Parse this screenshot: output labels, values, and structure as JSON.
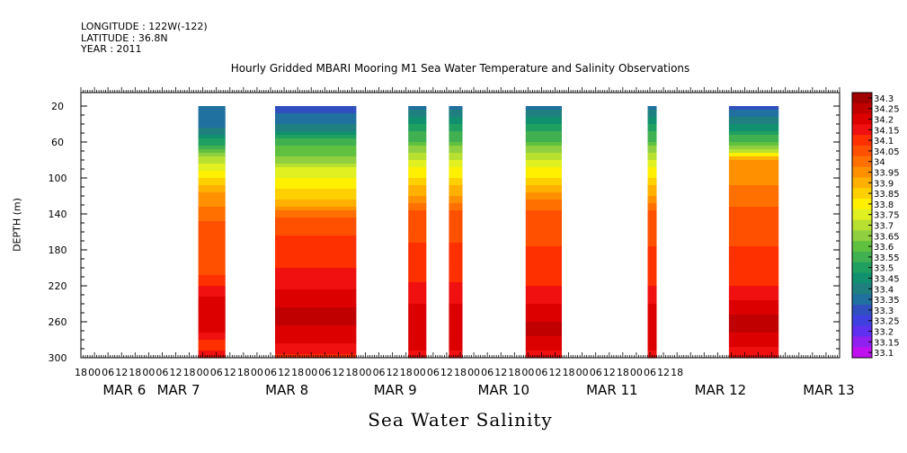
{
  "header": {
    "longitude": "LONGITUDE : 122W(-122)",
    "latitude": "LATITUDE : 36.8N",
    "year": "YEAR : 2011"
  },
  "footer_title": "Sea Water Salinity",
  "chart_data": {
    "type": "heatmap",
    "title": "Hourly Gridded MBARI Mooring M1 Sea Water Temperature and Salinity Observations",
    "ylabel": "DEPTH (m)",
    "xlabel": "",
    "variable": "Sea Water Salinity",
    "x_axis": {
      "hour_tick_labels": [
        "18",
        "00",
        "06",
        "12",
        "18",
        "00",
        "06",
        "12",
        "18",
        "00",
        "06",
        "12",
        "18",
        "00",
        "06",
        "12",
        "18",
        "00",
        "06",
        "12",
        "18",
        "00",
        "06",
        "12",
        "18",
        "00",
        "06",
        "12",
        "18",
        "00",
        "06",
        "12",
        "18",
        "00",
        "06",
        "12",
        "18",
        "00",
        "06",
        "12",
        "18",
        "00",
        "06",
        "12",
        "18"
      ],
      "date_labels": [
        {
          "label": "MAR  6",
          "at_hour": 24
        },
        {
          "label": "MAR  7",
          "at_hour": 48
        },
        {
          "label": "MAR  8",
          "at_hour": 96
        },
        {
          "label": "MAR  9",
          "at_hour": 144
        },
        {
          "label": "MAR 10",
          "at_hour": 192
        },
        {
          "label": "MAR 11",
          "at_hour": 240
        },
        {
          "label": "MAR 12",
          "at_hour": 288
        },
        {
          "label": "MAR 13",
          "at_hour": 336
        }
      ],
      "range_hours": [
        0,
        336
      ],
      "start": "MAR 5 18:00"
    },
    "y_axis": {
      "ticks": [
        20,
        60,
        100,
        140,
        180,
        220,
        260,
        300
      ],
      "ylim": [
        300,
        5
      ],
      "inverted": true
    },
    "colorbar": {
      "levels": [
        "34.3",
        "34.25",
        "34.2",
        "34.15",
        "34.1",
        "34.05",
        "34",
        "33.95",
        "33.9",
        "33.85",
        "33.8",
        "33.75",
        "33.7",
        "33.65",
        "33.6",
        "33.55",
        "33.5",
        "33.45",
        "33.4",
        "33.35",
        "33.3",
        "33.25",
        "33.2",
        "33.15",
        "33.1"
      ],
      "colors": [
        "#a00000",
        "#c00000",
        "#dd0000",
        "#f01010",
        "#ff3000",
        "#ff5000",
        "#ff7000",
        "#ff9000",
        "#ffb000",
        "#ffd000",
        "#fff000",
        "#e0f020",
        "#b8e030",
        "#90d040",
        "#60c040",
        "#40b050",
        "#20a060",
        "#10906f",
        "#208080",
        "#2070a0",
        "#3050c0",
        "#4040e0",
        "#6030f0",
        "#9020f0",
        "#c010f0"
      ]
    },
    "segments": [
      {
        "start_hour": 52,
        "end_hour": 64,
        "profile": [
          [
            20,
            33.35
          ],
          [
            40,
            33.35
          ],
          [
            55,
            33.45
          ],
          [
            65,
            33.55
          ],
          [
            80,
            33.7
          ],
          [
            95,
            33.8
          ],
          [
            110,
            33.9
          ],
          [
            125,
            33.95
          ],
          [
            140,
            34.0
          ],
          [
            160,
            34.05
          ],
          [
            200,
            34.05
          ],
          [
            215,
            34.1
          ],
          [
            240,
            34.2
          ],
          [
            270,
            34.2
          ],
          [
            285,
            34.1
          ],
          [
            300,
            34.15
          ]
        ]
      },
      {
        "start_hour": 86,
        "end_hour": 122,
        "profile": [
          [
            20,
            33.3
          ],
          [
            38,
            33.35
          ],
          [
            50,
            33.45
          ],
          [
            60,
            33.55
          ],
          [
            70,
            33.6
          ],
          [
            80,
            33.65
          ],
          [
            92,
            33.75
          ],
          [
            105,
            33.8
          ],
          [
            120,
            33.85
          ],
          [
            135,
            33.95
          ],
          [
            145,
            34.05
          ],
          [
            185,
            34.1
          ],
          [
            215,
            34.15
          ],
          [
            235,
            34.2
          ],
          [
            255,
            34.25
          ],
          [
            275,
            34.2
          ],
          [
            290,
            34.15
          ],
          [
            300,
            34.1
          ]
        ]
      },
      {
        "start_hour": 145,
        "end_hour": 153,
        "profile": [
          [
            20,
            33.35
          ],
          [
            35,
            33.45
          ],
          [
            55,
            33.55
          ],
          [
            75,
            33.7
          ],
          [
            95,
            33.8
          ],
          [
            115,
            33.9
          ],
          [
            130,
            34.0
          ],
          [
            145,
            34.05
          ],
          [
            200,
            34.1
          ],
          [
            230,
            34.15
          ],
          [
            250,
            34.2
          ],
          [
            285,
            34.2
          ],
          [
            300,
            34.15
          ]
        ]
      },
      {
        "start_hour": 163,
        "end_hour": 169,
        "profile": [
          [
            20,
            33.35
          ],
          [
            35,
            33.45
          ],
          [
            55,
            33.55
          ],
          [
            75,
            33.7
          ],
          [
            95,
            33.8
          ],
          [
            115,
            33.9
          ],
          [
            130,
            34.0
          ],
          [
            145,
            34.05
          ],
          [
            200,
            34.1
          ],
          [
            230,
            34.15
          ],
          [
            250,
            34.2
          ],
          [
            285,
            34.2
          ],
          [
            300,
            34.15
          ]
        ]
      },
      {
        "start_hour": 197,
        "end_hour": 213,
        "profile": [
          [
            20,
            33.35
          ],
          [
            35,
            33.45
          ],
          [
            55,
            33.55
          ],
          [
            75,
            33.7
          ],
          [
            95,
            33.8
          ],
          [
            110,
            33.9
          ],
          [
            130,
            34.0
          ],
          [
            145,
            34.05
          ],
          [
            210,
            34.1
          ],
          [
            230,
            34.15
          ],
          [
            250,
            34.2
          ],
          [
            270,
            34.25
          ],
          [
            285,
            34.2
          ],
          [
            300,
            34.15
          ]
        ]
      },
      {
        "start_hour": 251,
        "end_hour": 255,
        "profile": [
          [
            20,
            33.35
          ],
          [
            35,
            33.45
          ],
          [
            55,
            33.55
          ],
          [
            75,
            33.7
          ],
          [
            95,
            33.8
          ],
          [
            115,
            33.9
          ],
          [
            130,
            34.0
          ],
          [
            145,
            34.05
          ],
          [
            210,
            34.1
          ],
          [
            230,
            34.15
          ],
          [
            250,
            34.2
          ],
          [
            285,
            34.2
          ],
          [
            300,
            34.15
          ]
        ]
      },
      {
        "start_hour": 287,
        "end_hour": 309,
        "profile": [
          [
            20,
            33.3
          ],
          [
            35,
            33.4
          ],
          [
            50,
            33.5
          ],
          [
            62,
            33.6
          ],
          [
            72,
            33.75
          ],
          [
            80,
            33.95
          ],
          [
            100,
            33.95
          ],
          [
            120,
            34.0
          ],
          [
            145,
            34.05
          ],
          [
            210,
            34.1
          ],
          [
            230,
            34.15
          ],
          [
            245,
            34.2
          ],
          [
            260,
            34.25
          ],
          [
            280,
            34.2
          ],
          [
            300,
            34.15
          ]
        ]
      }
    ]
  }
}
